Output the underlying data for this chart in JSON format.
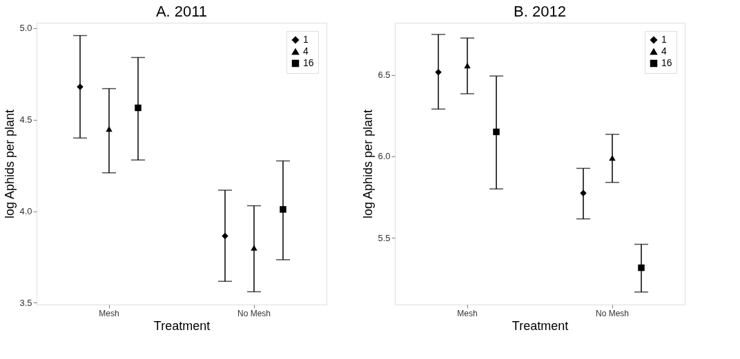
{
  "chart_data": [
    {
      "type": "scatter",
      "title": "A. 2011",
      "xlabel": "Treatment",
      "ylabel": "log Aphids per plant",
      "categories": [
        "Mesh",
        "No Mesh"
      ],
      "ylim": [
        3.49,
        5.03
      ],
      "yticks": [
        3.5,
        {
          "value": 4,
          "label": "4.0"
        },
        4.5,
        {
          "value": 5,
          "label": "5.0"
        }
      ],
      "grid": false,
      "legend": "top right",
      "series": [
        {
          "name": "1",
          "color": "#000000",
          "marker": "diamond",
          "values": [
            4.68,
            3.865
          ],
          "errors": [
            [
              4.4,
              4.96
            ],
            [
              3.617,
              4.115
            ]
          ]
        },
        {
          "name": "4",
          "color": "#000000",
          "marker": "triangle",
          "values": [
            4.45,
            3.8
          ],
          "errors": [
            [
              4.21,
              4.67
            ],
            [
              3.56,
              4.03
            ]
          ]
        },
        {
          "name": "16",
          "color": "#000000",
          "marker": "square",
          "values": [
            4.565,
            4.01
          ],
          "errors": [
            [
              4.28,
              4.84
            ],
            [
              3.735,
              4.275
            ]
          ]
        }
      ]
    },
    {
      "type": "scatter",
      "title": "B. 2012",
      "xlabel": "Treatment",
      "ylabel": "log Aphids per plant",
      "categories": [
        "Mesh",
        "No Mesh"
      ],
      "ylim": [
        5.09,
        6.82
      ],
      "yticks": [
        5.5,
        {
          "value": 6,
          "label": "6.0"
        },
        6.5
      ],
      "grid": false,
      "legend": "top right",
      "series": [
        {
          "name": "1",
          "color": "#000000",
          "marker": "diamond",
          "values": [
            6.517,
            5.774
          ],
          "errors": [
            [
              6.29,
              6.748
            ],
            [
              5.616,
              5.926
            ]
          ]
        },
        {
          "name": "4",
          "color": "#000000",
          "marker": "triangle",
          "values": [
            6.557,
            5.99
          ],
          "errors": [
            [
              6.384,
              6.726
            ],
            [
              5.84,
              6.135
            ]
          ]
        },
        {
          "name": "16",
          "color": "#000000",
          "marker": "square",
          "values": [
            6.15,
            5.316
          ],
          "errors": [
            [
              5.8,
              6.493
            ],
            [
              5.167,
              5.46
            ]
          ]
        }
      ]
    }
  ]
}
